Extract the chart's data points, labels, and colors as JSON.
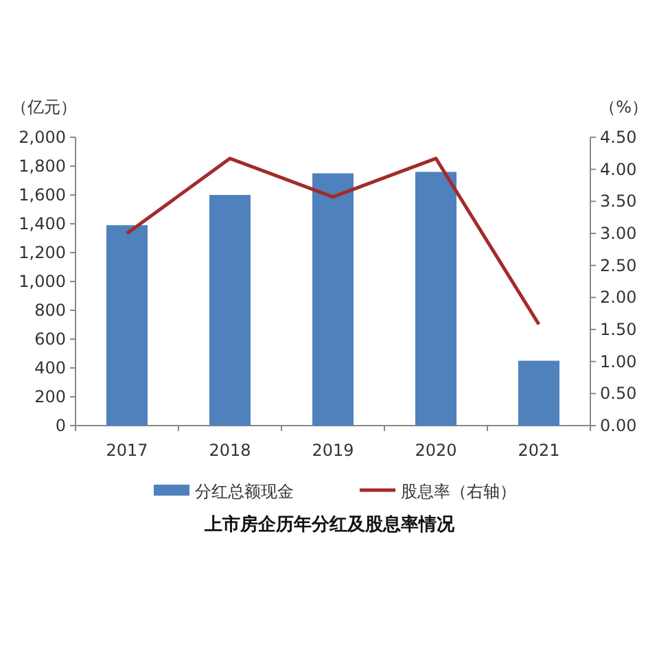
{
  "chart_data": {
    "type": "bar",
    "title": "上市房企历年分红及股息率情况",
    "ylabel": "（亿元）",
    "y2label": "（%）",
    "categories": [
      "2017",
      "2018",
      "2019",
      "2020",
      "2021"
    ],
    "series": [
      {
        "name": "分红总额现金",
        "color": "#4f81bd",
        "values": [
          1390,
          1600,
          1750,
          1760,
          450
        ]
      },
      {
        "name": "股息率（右轴）",
        "type": "line",
        "axis": "y2",
        "color": "#a52a2a",
        "values": [
          3.0,
          4.17,
          3.57,
          4.17,
          1.58
        ]
      }
    ],
    "ylim": [
      0,
      2000
    ],
    "yticks": [
      0,
      {
        "value": 200,
        "label": "200"
      },
      400,
      600,
      800,
      {
        "value": 1000,
        "label": "1,000"
      },
      {
        "value": 1200,
        "label": "1,200"
      },
      {
        "value": 1400,
        "label": "1,400"
      },
      {
        "value": 1600,
        "label": "1,600"
      },
      {
        "value": 1800,
        "label": "1,800"
      },
      {
        "value": 2000,
        "label": "2,000"
      }
    ],
    "y2lim": [
      0,
      4.5
    ],
    "y2ticks": [
      {
        "value": 0,
        "label": "0.00"
      },
      {
        "value": 0.5,
        "label": "0.50"
      },
      {
        "value": 1,
        "label": "1.00"
      },
      {
        "value": 1.5,
        "label": "1.50"
      },
      {
        "value": 2,
        "label": "2.00"
      },
      {
        "value": 2.5,
        "label": "2.50"
      },
      {
        "value": 3,
        "label": "3.00"
      },
      {
        "value": 3.5,
        "label": "3.50"
      },
      {
        "value": 4,
        "label": "4.00"
      },
      {
        "value": 4.5,
        "label": "4.50"
      }
    ],
    "legend": "bottom",
    "grid": false
  }
}
